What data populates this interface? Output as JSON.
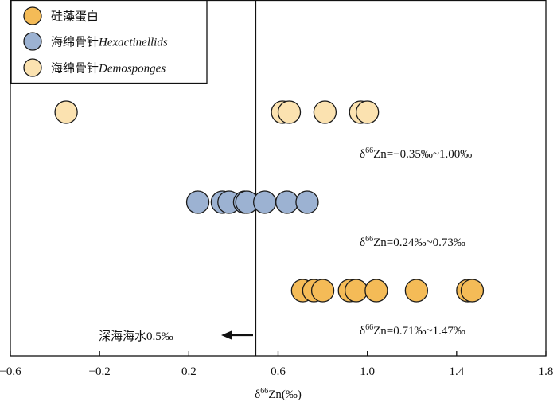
{
  "chart_data": {
    "type": "scatter",
    "xlabel": {
      "prefix": "δ",
      "sup": "66",
      "rest": "Zn(‰)"
    },
    "xlim": [
      -0.6,
      1.8
    ],
    "xticks": [
      -0.6,
      -0.2,
      0.2,
      0.6,
      1.0,
      1.4,
      1.8
    ],
    "xtick_labels": [
      "−0.6",
      "−0.2",
      "0.2",
      "0.6",
      "1.0",
      "1.4",
      "1.8"
    ],
    "grid": false,
    "legend_position": "top-left",
    "series": [
      {
        "name": "海绵骨针",
        "name_italic": "Demosponges",
        "color": "#fbe2b0",
        "row": 3,
        "x": [
          -0.35,
          0.62,
          0.65,
          0.81,
          0.97,
          1.0
        ]
      },
      {
        "name": "海绵骨针",
        "name_italic": "Hexactinellids",
        "color": "#9cb2d2",
        "row": 2,
        "x": [
          0.24,
          0.35,
          0.38,
          0.45,
          0.46,
          0.54,
          0.64,
          0.73
        ]
      },
      {
        "name": "硅藻蛋白",
        "name_italic": "",
        "color": "#f4bb57",
        "row": 1,
        "x": [
          0.71,
          0.76,
          0.8,
          0.92,
          0.95,
          1.04,
          1.22,
          1.45,
          1.47
        ]
      }
    ],
    "legend_order": [
      2,
      1,
      0
    ],
    "reference_line": {
      "x": 0.5,
      "label": "深海海水0.5‰"
    },
    "annotations": [
      {
        "prefix": "δ",
        "sup": "66",
        "rest": "Zn=−0.35‰~1.00‰"
      },
      {
        "prefix": "δ",
        "sup": "66",
        "rest": "Zn=0.24‰~0.73‰"
      },
      {
        "prefix": "δ",
        "sup": "66",
        "rest": "Zn=0.71‰~1.47‰"
      }
    ]
  }
}
